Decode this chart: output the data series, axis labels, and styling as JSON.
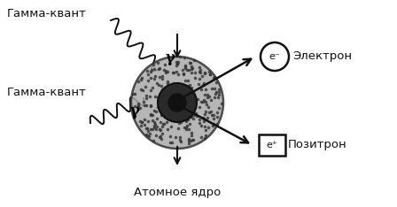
{
  "bg_color": "#ffffff",
  "nucleus_color": "#aaaaaa",
  "nucleus_edge_color": "#333333",
  "dot_color": "#111111",
  "arrow_color": "#111111",
  "gamma_color": "#111111",
  "label_gamma_top": "Гамма-квант",
  "label_gamma_bottom": "Гамма-квант",
  "label_electron": "Электрон",
  "label_positron": "Позитрон",
  "label_nucleus": "Атомное ядро",
  "gamma_symbol": "γ",
  "fontsize_labels": 9.5,
  "fontsize_symbols": 8
}
